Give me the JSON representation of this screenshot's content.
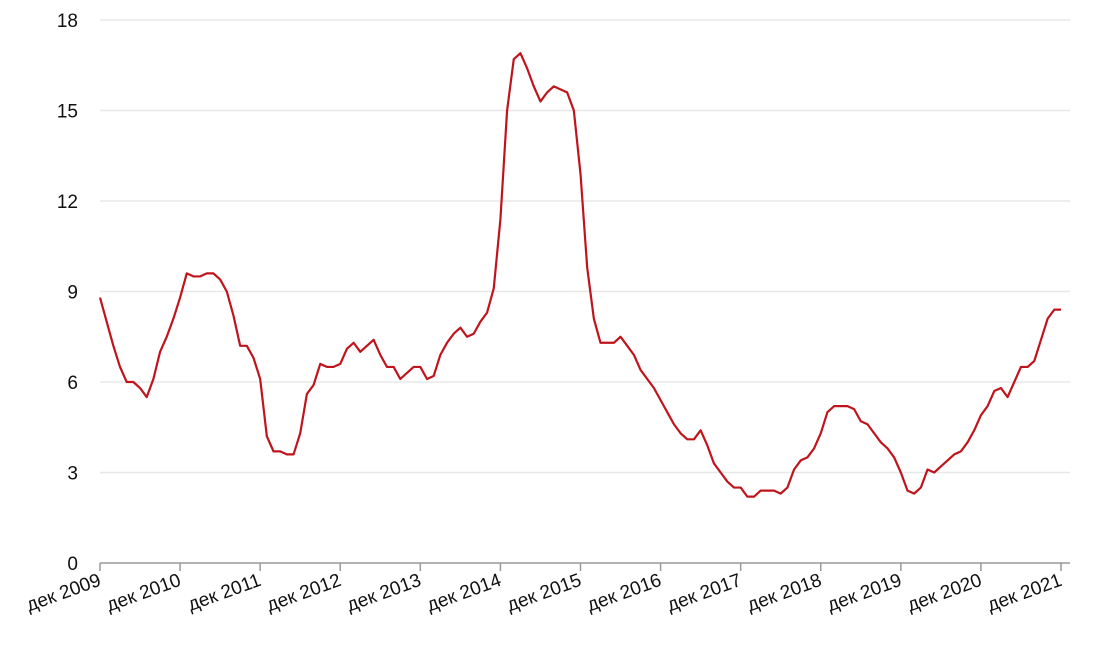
{
  "chart_data": {
    "type": "line",
    "color": "#c0141c",
    "grid": true,
    "categories": [
      "дек 2009",
      null,
      null,
      null,
      null,
      null,
      null,
      null,
      null,
      null,
      null,
      null,
      "дек 2010",
      null,
      null,
      null,
      null,
      null,
      null,
      null,
      null,
      null,
      null,
      null,
      "дек 2011",
      null,
      null,
      null,
      null,
      null,
      null,
      null,
      null,
      null,
      null,
      null,
      "дек 2012",
      null,
      null,
      null,
      null,
      null,
      null,
      null,
      null,
      null,
      null,
      null,
      "дек 2013",
      null,
      null,
      null,
      null,
      null,
      null,
      null,
      null,
      null,
      null,
      null,
      "дек 2014",
      null,
      null,
      null,
      null,
      null,
      null,
      null,
      null,
      null,
      null,
      null,
      "дек 2015",
      null,
      null,
      null,
      null,
      null,
      null,
      null,
      null,
      null,
      null,
      null,
      "дек 2016",
      null,
      null,
      null,
      null,
      null,
      null,
      null,
      null,
      null,
      null,
      null,
      "дек 2017",
      null,
      null,
      null,
      null,
      null,
      null,
      null,
      null,
      null,
      null,
      null,
      "дек 2018",
      null,
      null,
      null,
      null,
      null,
      null,
      null,
      null,
      null,
      null,
      null,
      "дек 2019",
      null,
      null,
      null,
      null,
      null,
      null,
      null,
      null,
      null,
      null,
      null,
      "дек 2020",
      null,
      null,
      null,
      null,
      null,
      null,
      null,
      null,
      null,
      null,
      null,
      "дек 2021"
    ],
    "values": [
      8.8,
      8.0,
      7.2,
      6.5,
      6.0,
      6.0,
      5.8,
      5.5,
      6.1,
      7.0,
      7.5,
      8.1,
      8.8,
      9.6,
      9.5,
      9.5,
      9.6,
      9.6,
      9.4,
      9.0,
      8.2,
      7.2,
      7.2,
      6.8,
      6.1,
      4.2,
      3.7,
      3.7,
      3.6,
      3.6,
      4.3,
      5.6,
      5.9,
      6.6,
      6.5,
      6.5,
      6.6,
      7.1,
      7.3,
      7.0,
      7.2,
      7.4,
      6.9,
      6.5,
      6.5,
      6.1,
      6.3,
      6.5,
      6.5,
      6.1,
      6.2,
      6.9,
      7.3,
      7.6,
      7.8,
      7.5,
      7.6,
      8.0,
      8.3,
      9.1,
      11.4,
      15.0,
      16.7,
      16.9,
      16.4,
      15.8,
      15.3,
      15.6,
      15.8,
      15.7,
      15.6,
      15.0,
      12.9,
      9.8,
      8.1,
      7.3,
      7.3,
      7.3,
      7.5,
      7.2,
      6.9,
      6.4,
      6.1,
      5.8,
      5.4,
      5.0,
      4.6,
      4.3,
      4.1,
      4.1,
      4.4,
      3.9,
      3.3,
      3.0,
      2.7,
      2.5,
      2.5,
      2.2,
      2.2,
      2.4,
      2.4,
      2.4,
      2.3,
      2.5,
      3.1,
      3.4,
      3.5,
      3.8,
      4.3,
      5.0,
      5.2,
      5.2,
      5.2,
      5.1,
      4.7,
      4.6,
      4.3,
      4.0,
      3.8,
      3.5,
      3.0,
      2.4,
      2.3,
      2.5,
      3.1,
      3.0,
      3.2,
      3.4,
      3.6,
      3.7,
      4.0,
      4.4,
      4.9,
      5.2,
      5.7,
      5.8,
      5.5,
      6.0,
      6.5,
      6.5,
      6.7,
      7.4,
      8.1,
      8.4,
      8.4
    ],
    "ylim": [
      0,
      18
    ],
    "yticks": [
      0,
      3,
      6,
      9,
      12,
      15,
      18
    ]
  }
}
